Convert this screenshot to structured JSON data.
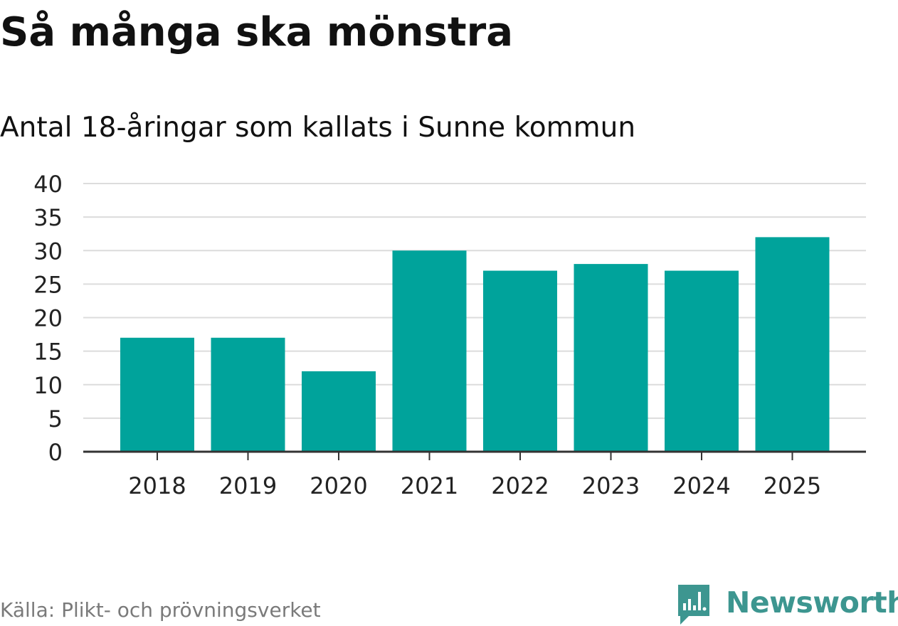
{
  "header": {
    "title": "Så många ska mönstra",
    "subtitle": "Antal 18-åringar som kallats i Sunne kommun"
  },
  "footer": {
    "source": "Källa: Plikt- och prövningsverket",
    "brand": "Newsworthy",
    "brand_icon": "bar-chart-speech-bubble-icon"
  },
  "colors": {
    "bar": "#00a39b",
    "grid": "#dcdcdc",
    "axis": "#333333",
    "brand": "#3d9690"
  },
  "chart_data": {
    "type": "bar",
    "categories": [
      "2018",
      "2019",
      "2020",
      "2021",
      "2022",
      "2023",
      "2024",
      "2025"
    ],
    "values": [
      17,
      17,
      12,
      30,
      27,
      28,
      27,
      32
    ],
    "yticks": [
      0,
      5,
      10,
      15,
      20,
      25,
      30,
      35,
      40
    ],
    "ylim": [
      0,
      40
    ],
    "grid": true,
    "legend": "none"
  }
}
